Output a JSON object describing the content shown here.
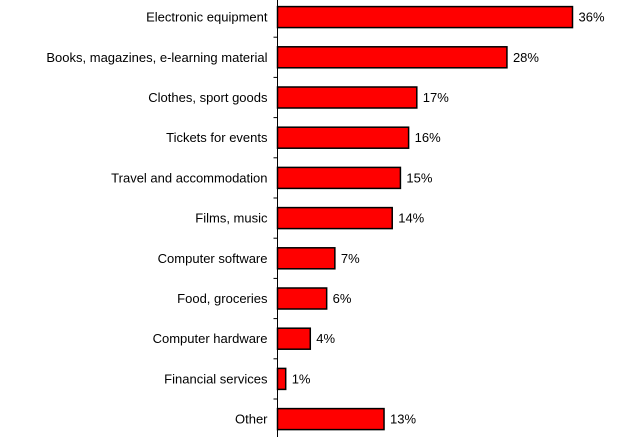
{
  "chart_data": {
    "type": "bar",
    "orientation": "horizontal",
    "categories": [
      "Electronic equipment",
      "Books, magazines, e-learning material",
      "Clothes, sport goods",
      "Tickets for events",
      "Travel and accommodation",
      "Films, music",
      "Computer software",
      "Food, groceries",
      "Computer hardware",
      "Financial services",
      "Other"
    ],
    "values": [
      36,
      28,
      17,
      16,
      15,
      14,
      7,
      6,
      4,
      1,
      13
    ],
    "value_labels": [
      "36%",
      "28%",
      "17%",
      "16%",
      "15%",
      "14%",
      "7%",
      "6%",
      "4%",
      "1%",
      "13%"
    ],
    "unit": "%",
    "xlim": [
      0,
      36
    ],
    "title": "",
    "xlabel": "",
    "ylabel": "",
    "grid": false,
    "legend": "none",
    "bar_color": "#ff0000",
    "bar_outline_color": "#000000"
  }
}
